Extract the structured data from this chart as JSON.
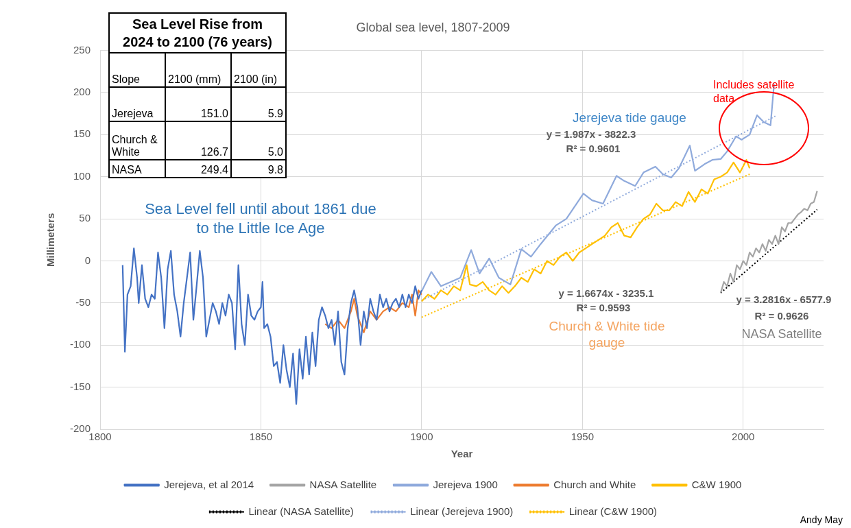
{
  "chart_data": {
    "type": "line",
    "title": "Global sea level, 1807-2009",
    "xlabel": "Year",
    "ylabel": "Millimeters",
    "xlim": [
      1800,
      2025
    ],
    "ylim": [
      -200,
      250
    ],
    "xticks": [
      1800,
      1850,
      1900,
      1950,
      2000
    ],
    "yticks": [
      -200,
      -150,
      -100,
      -50,
      0,
      50,
      100,
      150,
      200,
      250
    ],
    "grid": true,
    "legend": "bottom",
    "marker": "none",
    "annotations": [
      "Sea Level Rise from 2024 to 2100 (76 years)",
      "Slope",
      "2100 (mm)",
      "2100 (in)",
      "Jerejeva",
      "151.0",
      "5.9",
      "Church & White",
      "126.7",
      "5.0",
      "NASA",
      "249.4",
      "9.8",
      "Andy May",
      "Sea Level fell until about 1861 due to the Little Ice Age",
      "Jerejeva tide gauge",
      "y = 1.987x - 3822.3",
      "R² = 0.9601",
      "y = 1.6674x - 3235.1",
      "R² = 0.9593",
      "Church & White tide gauge",
      "y = 3.2816x - 6577.9",
      "R² = 0.9626",
      "NASA Satellite",
      "Includes satellite data"
    ],
    "series": [
      {
        "name": "Jerejeva, et al 2014",
        "color": "#4472c4",
        "x": [
          1807,
          1807.7,
          1808.5,
          1809.5,
          1810.5,
          1811.5,
          1812,
          1813,
          1814,
          1815,
          1816,
          1817,
          1818,
          1819,
          1820,
          1821,
          1822,
          1823,
          1824,
          1825,
          1826,
          1827,
          1828,
          1829,
          1830,
          1831,
          1832,
          1833,
          1834,
          1835,
          1836,
          1837,
          1838,
          1839,
          1840,
          1841,
          1842,
          1843,
          1844,
          1845,
          1846,
          1847,
          1848,
          1849,
          1850,
          1850.5,
          1851,
          1852,
          1853,
          1854,
          1855,
          1856,
          1857,
          1858,
          1859,
          1860,
          1861,
          1862,
          1863,
          1864,
          1865,
          1866,
          1867,
          1868,
          1869,
          1870,
          1871,
          1872,
          1873,
          1874,
          1875,
          1876,
          1877,
          1878,
          1879,
          1880,
          1881,
          1882,
          1883,
          1884,
          1885,
          1886,
          1887,
          1888,
          1889,
          1890,
          1891,
          1892,
          1893,
          1894,
          1895,
          1896,
          1897,
          1898,
          1899,
          1900
        ],
        "values": [
          -5,
          -108,
          -40,
          -30,
          15,
          -20,
          -50,
          -5,
          -45,
          -55,
          -40,
          -45,
          10,
          -20,
          -80,
          -10,
          12,
          -40,
          -60,
          -90,
          -50,
          -20,
          10,
          -70,
          -30,
          12,
          -20,
          -90,
          -70,
          -50,
          -60,
          -75,
          -50,
          -65,
          -40,
          -50,
          -105,
          -5,
          -75,
          -100,
          -40,
          -65,
          -70,
          -60,
          -55,
          -25,
          -80,
          -75,
          -90,
          -125,
          -120,
          -145,
          -100,
          -130,
          -150,
          -110,
          -170,
          -105,
          -140,
          -90,
          -135,
          -85,
          -125,
          -70,
          -55,
          -65,
          -80,
          -70,
          -100,
          -60,
          -120,
          -135,
          -80,
          -50,
          -35,
          -55,
          -100,
          -60,
          -80,
          -45,
          -60,
          -70,
          -40,
          -55,
          -45,
          -60,
          -50,
          -45,
          -55,
          -40,
          -55,
          -40,
          -50,
          -30,
          -45,
          -35
        ]
      },
      {
        "name": "NASA Satellite",
        "color": "#a5a5a5",
        "x": [
          1993,
          1994,
          1995,
          1996,
          1997,
          1998,
          1999,
          2000,
          2001,
          2002,
          2003,
          2004,
          2005,
          2006,
          2007,
          2008,
          2009,
          2010,
          2011,
          2012,
          2013,
          2014,
          2015,
          2016,
          2017,
          2018,
          2019,
          2020,
          2021,
          2022,
          2023
        ],
        "values": [
          -38,
          -25,
          -30,
          -15,
          -25,
          -5,
          -10,
          0,
          -5,
          10,
          5,
          15,
          10,
          20,
          12,
          25,
          20,
          30,
          20,
          40,
          35,
          45,
          45,
          50,
          55,
          58,
          62,
          60,
          68,
          70,
          83
        ]
      },
      {
        "name": "Jerejeva 1900",
        "color": "#8faadc",
        "x": [
          1900,
          1903,
          1906,
          1909,
          1912,
          1915.4,
          1918,
          1921,
          1924,
          1927.6,
          1931,
          1934,
          1937,
          1941.7,
          1945,
          1950.3,
          1953,
          1956.4,
          1960.6,
          1963,
          1966.4,
          1969,
          1972.7,
          1975,
          1977.6,
          1980,
          1983.4,
          1985,
          1988,
          1990.4,
          1993,
          1995,
          1997.8,
          1999.5,
          2002,
          2004.3,
          2006.4,
          2008.5,
          2009.6
        ],
        "values": [
          -36,
          -13,
          -30,
          -25,
          -20,
          13,
          -15,
          3,
          -20,
          -28,
          14,
          5,
          20,
          42,
          50,
          80,
          72,
          68,
          101,
          95,
          89,
          105,
          112,
          103,
          99,
          110,
          137,
          107,
          115,
          120,
          121,
          130,
          148,
          144,
          150,
          173,
          165,
          161,
          210
        ]
      },
      {
        "name": "Church and White",
        "color": "#ed7d31",
        "x": [
          1870,
          1872,
          1874,
          1876,
          1878,
          1879,
          1880,
          1882,
          1884,
          1886,
          1888,
          1890,
          1892,
          1894,
          1896,
          1897,
          1898,
          1899,
          1900
        ],
        "values": [
          -75,
          -80,
          -70,
          -80,
          -60,
          -45,
          -65,
          -85,
          -60,
          -70,
          -60,
          -55,
          -60,
          -50,
          -55,
          -40,
          -65,
          -35,
          -40
        ]
      },
      {
        "name": "C&W 1900",
        "color": "#ffc000",
        "x": [
          1900,
          1902,
          1904,
          1906,
          1908,
          1910,
          1912,
          1914,
          1915,
          1917,
          1919,
          1921,
          1923,
          1925,
          1927,
          1929,
          1931,
          1933,
          1935,
          1937,
          1939,
          1941,
          1943,
          1945,
          1947,
          1949,
          1951,
          1953,
          1955,
          1957,
          1959,
          1961,
          1963,
          1965,
          1967,
          1969,
          1971,
          1973,
          1975,
          1977,
          1979,
          1981,
          1983,
          1985,
          1987,
          1989,
          1991,
          1993,
          1995,
          1997,
          1999,
          2001,
          2002
        ],
        "values": [
          -48,
          -40,
          -45,
          -35,
          -40,
          -30,
          -35,
          -5,
          -28,
          -30,
          -25,
          -35,
          -40,
          -30,
          -38,
          -30,
          -20,
          -25,
          -10,
          -15,
          0,
          -5,
          5,
          10,
          0,
          10,
          15,
          20,
          25,
          30,
          40,
          45,
          30,
          28,
          40,
          50,
          55,
          68,
          60,
          60,
          70,
          65,
          82,
          70,
          85,
          80,
          97,
          100,
          105,
          117,
          105,
          120,
          110
        ]
      },
      {
        "name": "Linear (NASA Satellite)",
        "color": "#000000",
        "line_style": "dotted",
        "x": [
          1993,
          2023
        ],
        "values": [
          -38,
          61
        ]
      },
      {
        "name": "Linear (Jerejeva 1900)",
        "color": "#8faadc",
        "line_style": "dotted",
        "x": [
          1900,
          2010
        ],
        "values": [
          -47,
          172
        ]
      },
      {
        "name": "Linear (C&W 1900)",
        "color": "#ffc000",
        "line_style": "dotted",
        "x": [
          1900,
          2002
        ],
        "values": [
          -67,
          103
        ]
      }
    ]
  }
}
